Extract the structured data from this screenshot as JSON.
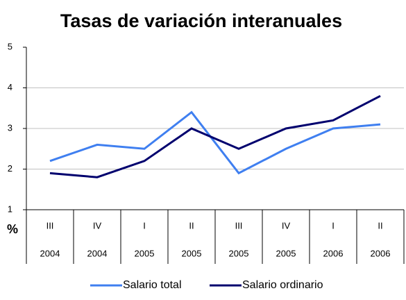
{
  "chart_data": {
    "type": "line",
    "title": "Tasas de variación interanuales",
    "ylabel": "%",
    "categories": [
      "III",
      "IV",
      "I",
      "II",
      "III",
      "IV",
      "I",
      "II"
    ],
    "category_years": [
      "2004",
      "2004",
      "2005",
      "2005",
      "2005",
      "2005",
      "2006",
      "2006"
    ],
    "series": [
      {
        "name": "Salario total",
        "color": "#3f7ff0",
        "values": [
          2.2,
          2.6,
          2.5,
          3.4,
          1.9,
          2.5,
          3.0,
          3.1
        ]
      },
      {
        "name": "Salario ordinario",
        "color": "#00006e",
        "values": [
          1.9,
          1.8,
          2.2,
          3.0,
          2.5,
          3.0,
          3.2,
          3.8
        ]
      }
    ],
    "ylim": [
      1,
      5
    ],
    "yticks": [
      1,
      2,
      3,
      4,
      5
    ],
    "grid": true
  }
}
